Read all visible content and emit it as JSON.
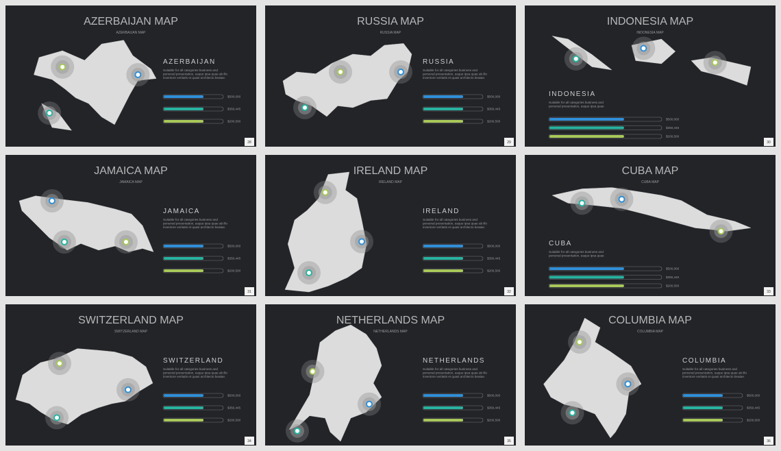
{
  "slides": [
    {
      "title": "AZERBAIJAN MAP",
      "subtitle": "AZERBAIJAN MAP",
      "heading": "AZERBAIJAN",
      "text": "Suitable for all categories business and personal presentation, eaque ipsa quae ab illo inventore veritatis et quasi architecto beatae.",
      "values": [
        "$500,000",
        "$350,445",
        "$200,500"
      ],
      "page": "28"
    },
    {
      "title": "RUSSIA MAP",
      "subtitle": "RUSSIA MAP",
      "heading": "RUSSIA",
      "text": "Suitable for all categories business and personal presentation, eaque ipsa quae ab illo inventore veritatis et quasi architecto beatae.",
      "values": [
        "$500,000",
        "$350,445",
        "$200,500"
      ],
      "page": "29"
    },
    {
      "title": "INDONESIA MAP",
      "subtitle": "INDONESIA MAP",
      "heading": "INDONESIA",
      "text": "Suitable for all categories business and personal presentation, eaque ipsa quae",
      "values": [
        "$500,000",
        "$350,445",
        "$200,500"
      ],
      "page": "30"
    },
    {
      "title": "JAMAICA MAP",
      "subtitle": "JAMAICA MAP",
      "heading": "JAMAICA",
      "text": "Suitable for all categories business and personal presentation, eaque ipsa quae ab illo inventore veritatis et quasi architecto beatae.",
      "values": [
        "$500,000",
        "$350,445",
        "$200,500"
      ],
      "page": "31"
    },
    {
      "title": "IRELAND MAP",
      "subtitle": "IRELAND MAP",
      "heading": "IRELAND",
      "text": "Suitable for all categories business and personal presentation, eaque ipsa quae ab illo inventore veritatis et quasi architecto beatae.",
      "values": [
        "$500,000",
        "$350,445",
        "$200,500"
      ],
      "page": "32"
    },
    {
      "title": "CUBA MAP",
      "subtitle": "CUBA MAP",
      "heading": "CUBA",
      "text": "Suitable for all categories business and personal presentation, eaque ipsa quae",
      "values": [
        "$500,000",
        "$350,445",
        "$200,500"
      ],
      "page": "33"
    },
    {
      "title": "SWITZERLAND MAP",
      "subtitle": "SWITZERLAND MAP",
      "heading": "SWITZERLAND",
      "text": "Suitable for all categories business and personal presentation, eaque ipsa quae ab illo inventore veritatis et quasi architecto beatae.",
      "values": [
        "$500,000",
        "$350,445",
        "$200,500"
      ],
      "page": "34"
    },
    {
      "title": "NETHERLANDS MAP",
      "subtitle": "NETHERLANDS MAP",
      "heading": "NETHERLANDS",
      "text": "Suitable for all categories business and personal presentation, eaque ipsa quae ab illo inventore veritatis et quasi architecto beatae.",
      "values": [
        "$500,000",
        "$350,445",
        "$200,500"
      ],
      "page": "35"
    },
    {
      "title": "COLUMBIA MAP",
      "subtitle": "COLUMBIA MAP",
      "heading": "COLUMBIA",
      "text": "Suitable for all categories business and personal presentation, eaque ipsa quae ab illo inventore veritatis et quasi architecto beatae.",
      "values": [
        "$500,000",
        "$350,445",
        "$200,500"
      ],
      "page": "36"
    }
  ]
}
